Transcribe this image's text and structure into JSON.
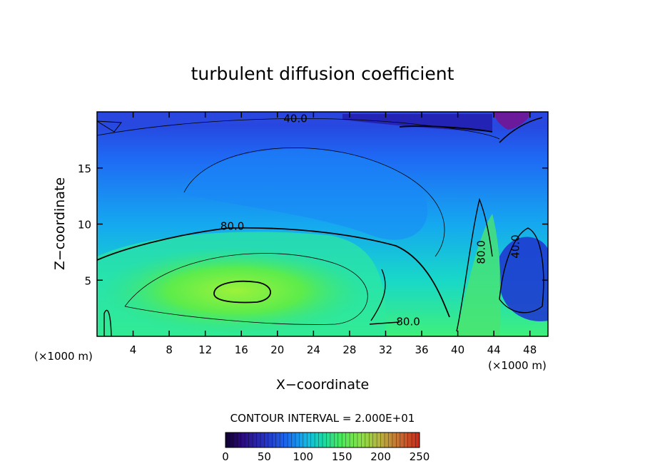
{
  "chart_data": {
    "type": "heatmap",
    "title": "turbulent diffusion coefficient",
    "xlabel": "X−coordinate",
    "ylabel": "Z−coordinate",
    "x_unit_left": "(×1000 m)",
    "x_unit_right": "(×1000 m)",
    "xlim": [
      0,
      50
    ],
    "ylim": [
      0,
      20
    ],
    "xticks": [
      "4",
      "8",
      "12",
      "16",
      "20",
      "24",
      "28",
      "32",
      "36",
      "40",
      "44",
      "48"
    ],
    "xtick_values": [
      4,
      8,
      12,
      16,
      20,
      24,
      28,
      32,
      36,
      40,
      44,
      48
    ],
    "yticks": [
      "5",
      "10",
      "15"
    ],
    "ytick_values": [
      5,
      10,
      15
    ],
    "contour_interval_text": "CONTOUR INTERVAL = 2.000E+01",
    "contour_labels": [
      {
        "text": "40.0",
        "x": 22,
        "z": 19.4
      },
      {
        "text": "80.0",
        "x": 15,
        "z": 9.8
      },
      {
        "text": "80.0",
        "x": 34.5,
        "z": 1.3
      },
      {
        "text": "80.0",
        "x": 43,
        "z": 7.5
      },
      {
        "text": "40.0",
        "x": 46.8,
        "z": 8.0
      }
    ],
    "colorbar": {
      "min": 0,
      "max": 250,
      "ticks": [
        "0",
        "50",
        "100",
        "150",
        "200",
        "250"
      ],
      "tick_values": [
        0,
        50,
        100,
        150,
        200,
        250
      ]
    },
    "colors": {
      "low": "#1a0070",
      "mid_low": "#1f74ff",
      "mid": "#12d4d8",
      "mid_high": "#5aee44",
      "high": "#c83010"
    }
  }
}
